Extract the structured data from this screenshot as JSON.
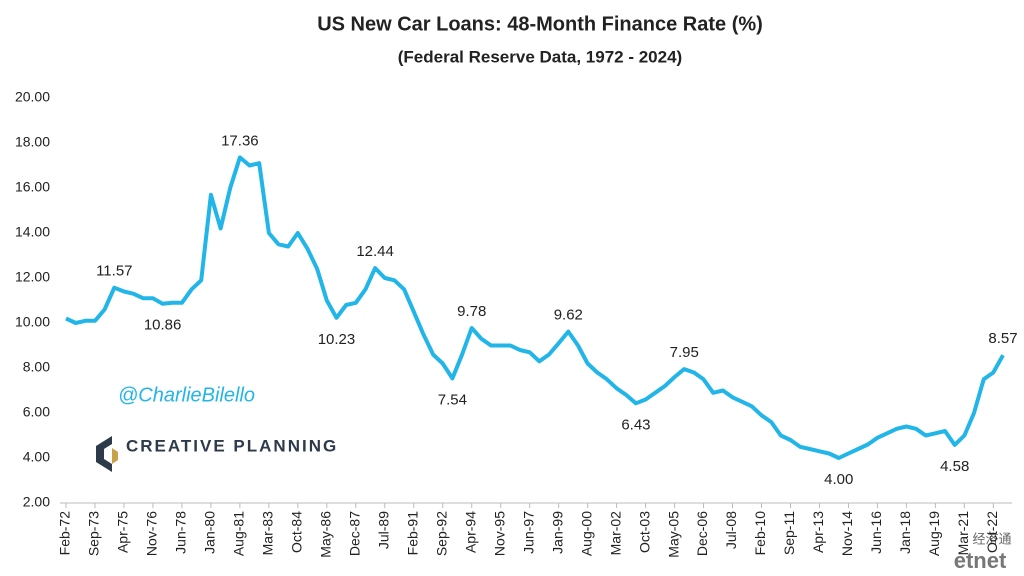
{
  "chart_data": {
    "type": "line",
    "title": "US New Car Loans: 48-Month Finance Rate (%)",
    "subtitle": "(Federal Reserve Data, 1972 - 2024)",
    "color": "#22b5e8",
    "grid": false,
    "ylim": [
      2,
      20
    ],
    "yticks": [
      {
        "value": 2,
        "label": "2.00"
      },
      {
        "value": 4,
        "label": "4.00"
      },
      {
        "value": 6,
        "label": "6.00"
      },
      {
        "value": 8,
        "label": "8.00"
      },
      {
        "value": 10,
        "label": "10.00"
      },
      {
        "value": 12,
        "label": "12.00"
      },
      {
        "value": 14,
        "label": "14.00"
      },
      {
        "value": 16,
        "label": "16.00"
      },
      {
        "value": 18,
        "label": "18.00"
      },
      {
        "value": 20,
        "label": "20.00"
      }
    ],
    "categories": [
      "Feb-72",
      null,
      null,
      "Sep-73",
      null,
      null,
      "Apr-75",
      null,
      null,
      "Nov-76",
      null,
      null,
      "Jun-78",
      null,
      null,
      "Jan-80",
      null,
      null,
      "Aug-81",
      null,
      null,
      "Mar-83",
      null,
      null,
      "Oct-84",
      null,
      null,
      "May-86",
      null,
      null,
      "Dec-87",
      null,
      null,
      "Jul-89",
      null,
      null,
      "Feb-91",
      null,
      null,
      "Sep-92",
      null,
      null,
      "Apr-94",
      null,
      null,
      "Nov-95",
      null,
      null,
      "Jun-97",
      null,
      null,
      "Jan-99",
      null,
      null,
      "Aug-00",
      null,
      null,
      "Mar-02",
      null,
      null,
      "Oct-03",
      null,
      null,
      "May-05",
      null,
      null,
      "Dec-06",
      null,
      null,
      "Jul-08",
      null,
      null,
      "Feb-10",
      null,
      null,
      "Sep-11",
      null,
      null,
      "Apr-13",
      null,
      null,
      "Nov-14",
      null,
      null,
      "Jun-16",
      null,
      null,
      "Jan-18",
      null,
      null,
      "Aug-19",
      null,
      null,
      "Mar-21",
      null,
      null,
      "Oct-22",
      null
    ],
    "values": [
      10.2,
      10.0,
      10.1,
      10.1,
      10.6,
      11.57,
      11.4,
      11.3,
      11.1,
      11.1,
      10.86,
      10.9,
      10.9,
      11.5,
      11.9,
      15.7,
      14.2,
      16.0,
      17.36,
      17.0,
      17.1,
      14.0,
      13.5,
      13.4,
      14.0,
      13.3,
      12.4,
      11.0,
      10.23,
      10.8,
      10.9,
      11.5,
      12.44,
      12.0,
      11.9,
      11.5,
      10.5,
      9.5,
      8.6,
      8.2,
      7.54,
      8.6,
      9.78,
      9.3,
      9.0,
      9.0,
      9.0,
      8.8,
      8.7,
      8.3,
      8.6,
      9.1,
      9.62,
      9.0,
      8.2,
      7.8,
      7.5,
      7.1,
      6.8,
      6.43,
      6.6,
      6.9,
      7.2,
      7.6,
      7.95,
      7.8,
      7.5,
      6.9,
      7.0,
      6.7,
      6.5,
      6.3,
      5.9,
      5.6,
      5.0,
      4.8,
      4.5,
      4.4,
      4.3,
      4.2,
      4.0,
      4.2,
      4.4,
      4.6,
      4.9,
      5.1,
      5.3,
      5.4,
      5.3,
      5.0,
      5.1,
      5.2,
      4.58,
      5.0,
      6.0,
      7.5,
      7.8,
      8.57
    ],
    "value_labels": [
      null,
      null,
      null,
      null,
      null,
      "11.57",
      null,
      null,
      null,
      null,
      "10.86",
      null,
      null,
      null,
      null,
      null,
      null,
      null,
      "17.36",
      null,
      null,
      null,
      null,
      null,
      null,
      null,
      null,
      null,
      "10.23",
      null,
      null,
      null,
      "12.44",
      null,
      null,
      null,
      null,
      null,
      null,
      null,
      "7.54",
      null,
      "9.78",
      null,
      null,
      null,
      null,
      null,
      null,
      null,
      null,
      null,
      "9.62",
      null,
      null,
      null,
      null,
      null,
      null,
      "6.43",
      null,
      null,
      null,
      null,
      "7.95",
      null,
      null,
      null,
      null,
      null,
      null,
      null,
      null,
      null,
      null,
      null,
      null,
      null,
      null,
      null,
      "4.00",
      null,
      null,
      null,
      null,
      null,
      null,
      null,
      null,
      null,
      null,
      null,
      "4.58",
      null,
      null,
      null,
      null,
      "8.57"
    ],
    "watermarks": [
      "@CharlieBilello",
      "CREATIVE PLANNING",
      "经济通",
      "etnet"
    ]
  }
}
